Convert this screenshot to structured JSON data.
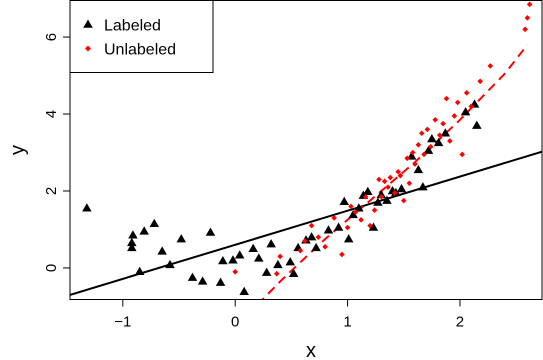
{
  "chart_data": {
    "type": "scatter",
    "xlabel": "x",
    "ylabel": "y",
    "xlim": [
      -1.47,
      2.73
    ],
    "ylim": [
      -0.82,
      6.95
    ],
    "x_ticks": [
      -1,
      0,
      1,
      2
    ],
    "y_ticks": [
      0,
      2,
      4,
      6
    ],
    "x_tick_labels": [
      "−1",
      "0",
      "1",
      "2"
    ],
    "y_tick_labels": [
      "0",
      "2",
      "4",
      "6"
    ],
    "grid": false,
    "legend_position": "top-left",
    "series": [
      {
        "name": "Labeled",
        "marker": "triangle",
        "color": "#000000",
        "x": [
          -1.32,
          -0.92,
          -0.92,
          -0.91,
          -0.85,
          -0.81,
          -0.72,
          -0.65,
          -0.58,
          -0.48,
          -0.38,
          -0.29,
          -0.22,
          -0.13,
          -0.11,
          -0.02,
          0.04,
          0.08,
          0.16,
          0.21,
          0.28,
          0.32,
          0.38,
          0.49,
          0.52,
          0.56,
          0.63,
          0.68,
          0.72,
          0.83,
          0.92,
          0.97,
          1.01,
          1.05,
          1.1,
          1.14,
          1.18,
          1.23,
          1.27,
          1.3,
          1.35,
          1.4,
          1.43,
          1.48,
          1.57,
          1.63,
          1.67,
          1.72,
          1.75,
          1.81,
          1.87,
          2.05,
          2.13,
          2.15
        ],
        "y": [
          1.55,
          0.65,
          0.52,
          0.85,
          -0.1,
          0.95,
          1.15,
          0.43,
          0.08,
          0.75,
          -0.25,
          -0.35,
          0.92,
          -0.38,
          0.18,
          0.2,
          0.33,
          -0.62,
          0.5,
          0.25,
          -0.12,
          0.62,
          0.08,
          0.15,
          -0.15,
          0.52,
          0.72,
          0.8,
          0.52,
          0.98,
          1.05,
          1.72,
          0.75,
          1.38,
          1.55,
          1.88,
          1.98,
          1.05,
          1.7,
          1.9,
          1.75,
          2.0,
          1.95,
          2.05,
          2.9,
          2.55,
          2.1,
          3.05,
          3.35,
          3.25,
          3.5,
          4.05,
          4.25,
          3.7
        ]
      },
      {
        "name": "Unlabeled",
        "marker": "diamond",
        "color": "#ff0000",
        "x": [
          0.0,
          0.37,
          0.4,
          0.58,
          0.62,
          0.68,
          0.74,
          0.8,
          0.88,
          0.95,
          1.0,
          1.03,
          1.07,
          1.12,
          1.16,
          1.2,
          1.24,
          1.28,
          1.3,
          1.33,
          1.36,
          1.38,
          1.42,
          1.45,
          1.47,
          1.5,
          1.53,
          1.55,
          1.58,
          1.6,
          1.63,
          1.66,
          1.68,
          1.71,
          1.74,
          1.78,
          1.82,
          1.85,
          1.88,
          1.91,
          1.95,
          1.98,
          2.02,
          2.06,
          2.1,
          2.18,
          2.27,
          2.58,
          2.6,
          2.62
        ],
        "y": [
          -0.1,
          -0.15,
          0.3,
          0.45,
          0.7,
          1.1,
          0.8,
          0.55,
          1.3,
          0.35,
          1.05,
          1.6,
          1.45,
          1.25,
          1.85,
          1.1,
          1.5,
          2.3,
          1.85,
          2.25,
          2.1,
          2.35,
          1.95,
          2.5,
          2.4,
          1.75,
          2.85,
          2.2,
          3.0,
          2.7,
          3.2,
          3.5,
          2.95,
          3.6,
          3.15,
          3.85,
          3.45,
          3.75,
          4.4,
          3.3,
          3.95,
          4.3,
          2.95,
          4.55,
          4.2,
          4.85,
          5.25,
          6.2,
          6.5,
          6.85
        ]
      }
    ],
    "lines": [
      {
        "name": "",
        "style": "solid",
        "color": "#000000",
        "x": [
          -1.47,
          2.73
        ],
        "y": [
          -0.7,
          3.02
        ]
      },
      {
        "name": "",
        "style": "dashed",
        "color": "#ff0000",
        "x": [
          0.2,
          0.4,
          0.6,
          0.8,
          1.0,
          1.2,
          1.4,
          1.6,
          1.8,
          2.0,
          2.2,
          2.4,
          2.6
        ],
        "y": [
          -0.95,
          -0.35,
          0.2,
          0.75,
          1.25,
          1.75,
          2.25,
          2.75,
          3.3,
          3.85,
          4.45,
          5.05,
          5.8
        ]
      }
    ]
  }
}
